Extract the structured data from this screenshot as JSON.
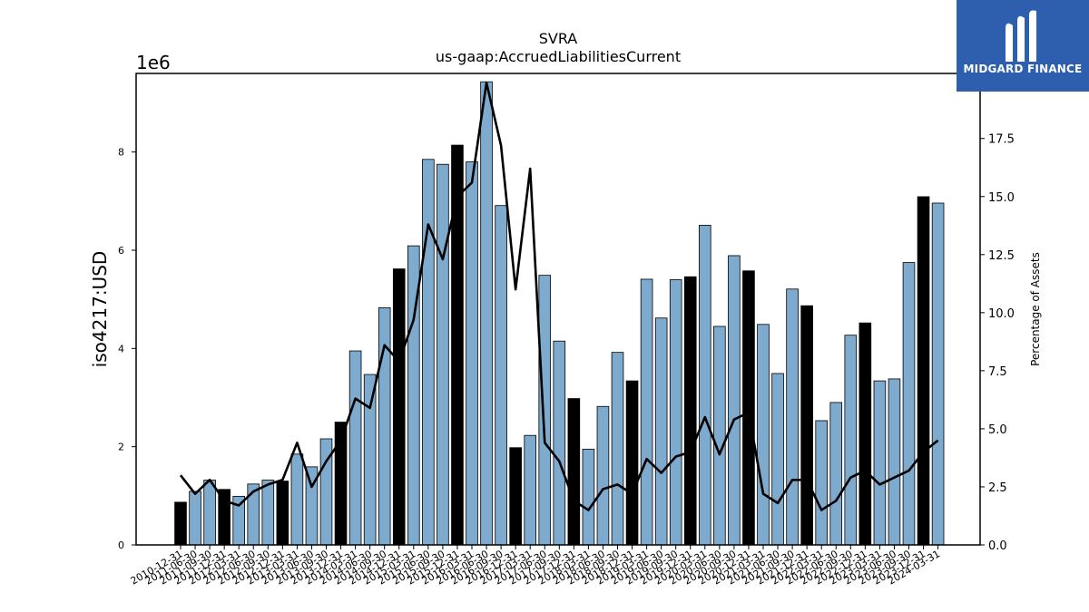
{
  "title_line1": "SVRA",
  "title_line2": "us-gaap:AccruedLiabilitiesCurrent",
  "logo": {
    "text": "MIDGARD FINANCE",
    "bg_color": "#2d5fae"
  },
  "chart_data": {
    "type": "bar",
    "title": "SVRA",
    "subtitle": "us-gaap:AccruedLiabilitiesCurrent",
    "ylabel": "iso4217:USD",
    "y_offset_label": "1e6",
    "y2label": "Percentage of Assets",
    "ylim": [
      0,
      9600000
    ],
    "y2lim": [
      0,
      20.3
    ],
    "y_ticks": [
      0,
      2,
      4,
      6,
      8
    ],
    "y2_ticks": [
      "0.0",
      "2.5",
      "5.0",
      "7.5",
      "10.0",
      "12.5",
      "15.0",
      "17.5"
    ],
    "grid": false,
    "bar_colors": {
      "annual": "#000000",
      "quarterly": "#7eaace"
    },
    "line_color": "#000000",
    "categories": [
      "2010-12-31",
      "2011-06-30",
      "2011-09-30",
      "2011-12-31",
      "2012-03-31",
      "2012-06-30",
      "2012-09-30",
      "2012-12-31",
      "2013-03-31",
      "2013-06-30",
      "2013-09-30",
      "2013-12-31",
      "2014-03-31",
      "2014-06-30",
      "2014-09-30",
      "2014-12-31",
      "2015-03-31",
      "2015-06-30",
      "2015-09-30",
      "2015-12-31",
      "2016-03-31",
      "2016-06-30",
      "2016-09-30",
      "2016-12-31",
      "2017-03-31",
      "2017-06-30",
      "2017-09-30",
      "2017-12-31",
      "2018-03-31",
      "2018-06-30",
      "2018-09-30",
      "2018-12-31",
      "2019-03-31",
      "2019-06-30",
      "2019-09-30",
      "2019-12-31",
      "2020-03-31",
      "2020-06-30",
      "2020-09-30",
      "2020-12-31",
      "2021-03-31",
      "2021-06-30",
      "2021-09-30",
      "2021-12-31",
      "2022-03-31",
      "2022-06-30",
      "2022-09-30",
      "2022-12-31",
      "2023-03-31",
      "2023-06-30",
      "2023-09-30",
      "2023-12-31",
      "2024-03-31"
    ],
    "series": [
      {
        "kind": "bar",
        "axis": "left",
        "values": [
          870000,
          1090000,
          1320000,
          1130000,
          990000,
          1240000,
          1320000,
          1300000,
          1850000,
          1590000,
          2160000,
          2500000,
          3950000,
          3470000,
          4830000,
          5620000,
          6090000,
          7850000,
          7750000,
          8140000,
          7800000,
          9430000,
          6910000,
          1980000,
          2230000,
          5490000,
          4150000,
          2980000,
          1950000,
          2820000,
          3920000,
          3340000,
          5410000,
          4620000,
          5400000,
          5460000,
          6510000,
          4450000,
          5890000,
          5580000,
          4490000,
          3490000,
          5210000,
          4870000,
          2530000,
          2900000,
          4270000,
          4520000,
          3340000,
          3380000,
          5750000,
          7090000,
          6960000
        ],
        "annual": [
          true,
          false,
          false,
          true,
          false,
          false,
          false,
          true,
          false,
          false,
          false,
          true,
          false,
          false,
          false,
          true,
          false,
          false,
          false,
          true,
          false,
          false,
          false,
          true,
          false,
          false,
          false,
          true,
          false,
          false,
          false,
          true,
          false,
          false,
          false,
          true,
          false,
          false,
          false,
          true,
          false,
          false,
          false,
          true,
          false,
          false,
          false,
          true,
          false,
          false,
          false,
          true,
          false
        ]
      },
      {
        "kind": "line",
        "axis": "right",
        "values": [
          3.0,
          2.2,
          2.8,
          1.9,
          1.7,
          2.3,
          2.6,
          2.8,
          4.4,
          2.5,
          3.6,
          4.5,
          6.3,
          5.9,
          8.6,
          7.9,
          9.7,
          13.8,
          12.3,
          15.0,
          15.6,
          19.9,
          17.2,
          11.0,
          16.2,
          4.4,
          3.6,
          1.9,
          1.5,
          2.4,
          2.6,
          2.2,
          3.7,
          3.1,
          3.8,
          4.0,
          5.5,
          3.9,
          5.4,
          5.7,
          2.2,
          1.8,
          2.8,
          2.8,
          1.5,
          1.9,
          2.9,
          3.2,
          2.6,
          2.9,
          3.2,
          4.0,
          4.5
        ]
      }
    ]
  }
}
